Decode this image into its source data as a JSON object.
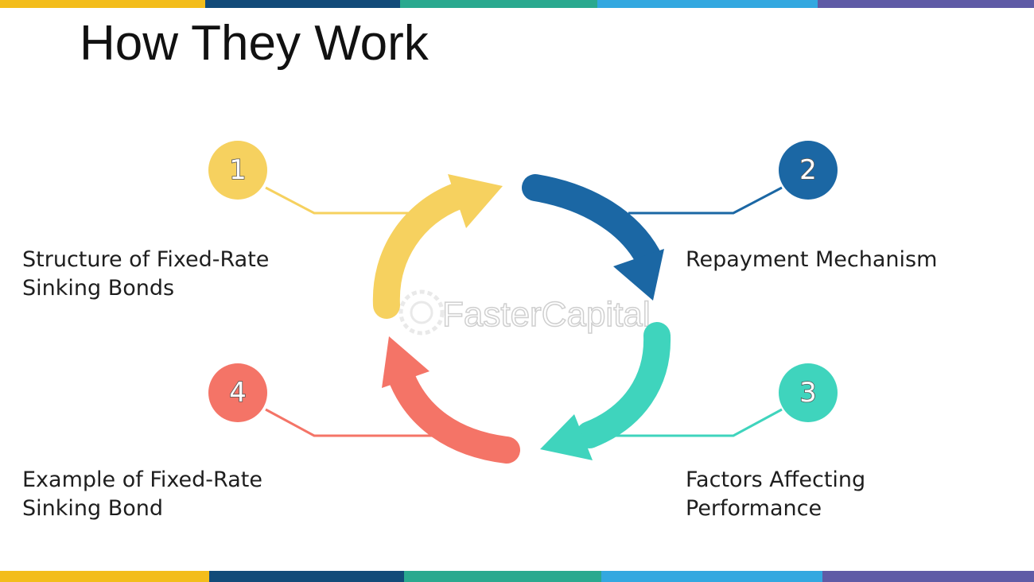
{
  "title": "How They Work",
  "colors": {
    "yellow": "#f6d15f",
    "blue": "#1b67a4",
    "teal": "#3fd4bd",
    "red": "#f47467",
    "bar_segments": [
      "#f3bd1b",
      "#124b79",
      "#2aa98f",
      "#33a8e0",
      "#5f5ba6"
    ]
  },
  "steps": [
    {
      "number": "1",
      "label": "Structure of Fixed-Rate\nSinking Bonds"
    },
    {
      "number": "2",
      "label": "Repayment Mechanism"
    },
    {
      "number": "3",
      "label": "Factors Affecting\nPerformance"
    },
    {
      "number": "4",
      "label": "Example of Fixed-Rate\nSinking Bond"
    }
  ],
  "watermark": "FasterCapital"
}
